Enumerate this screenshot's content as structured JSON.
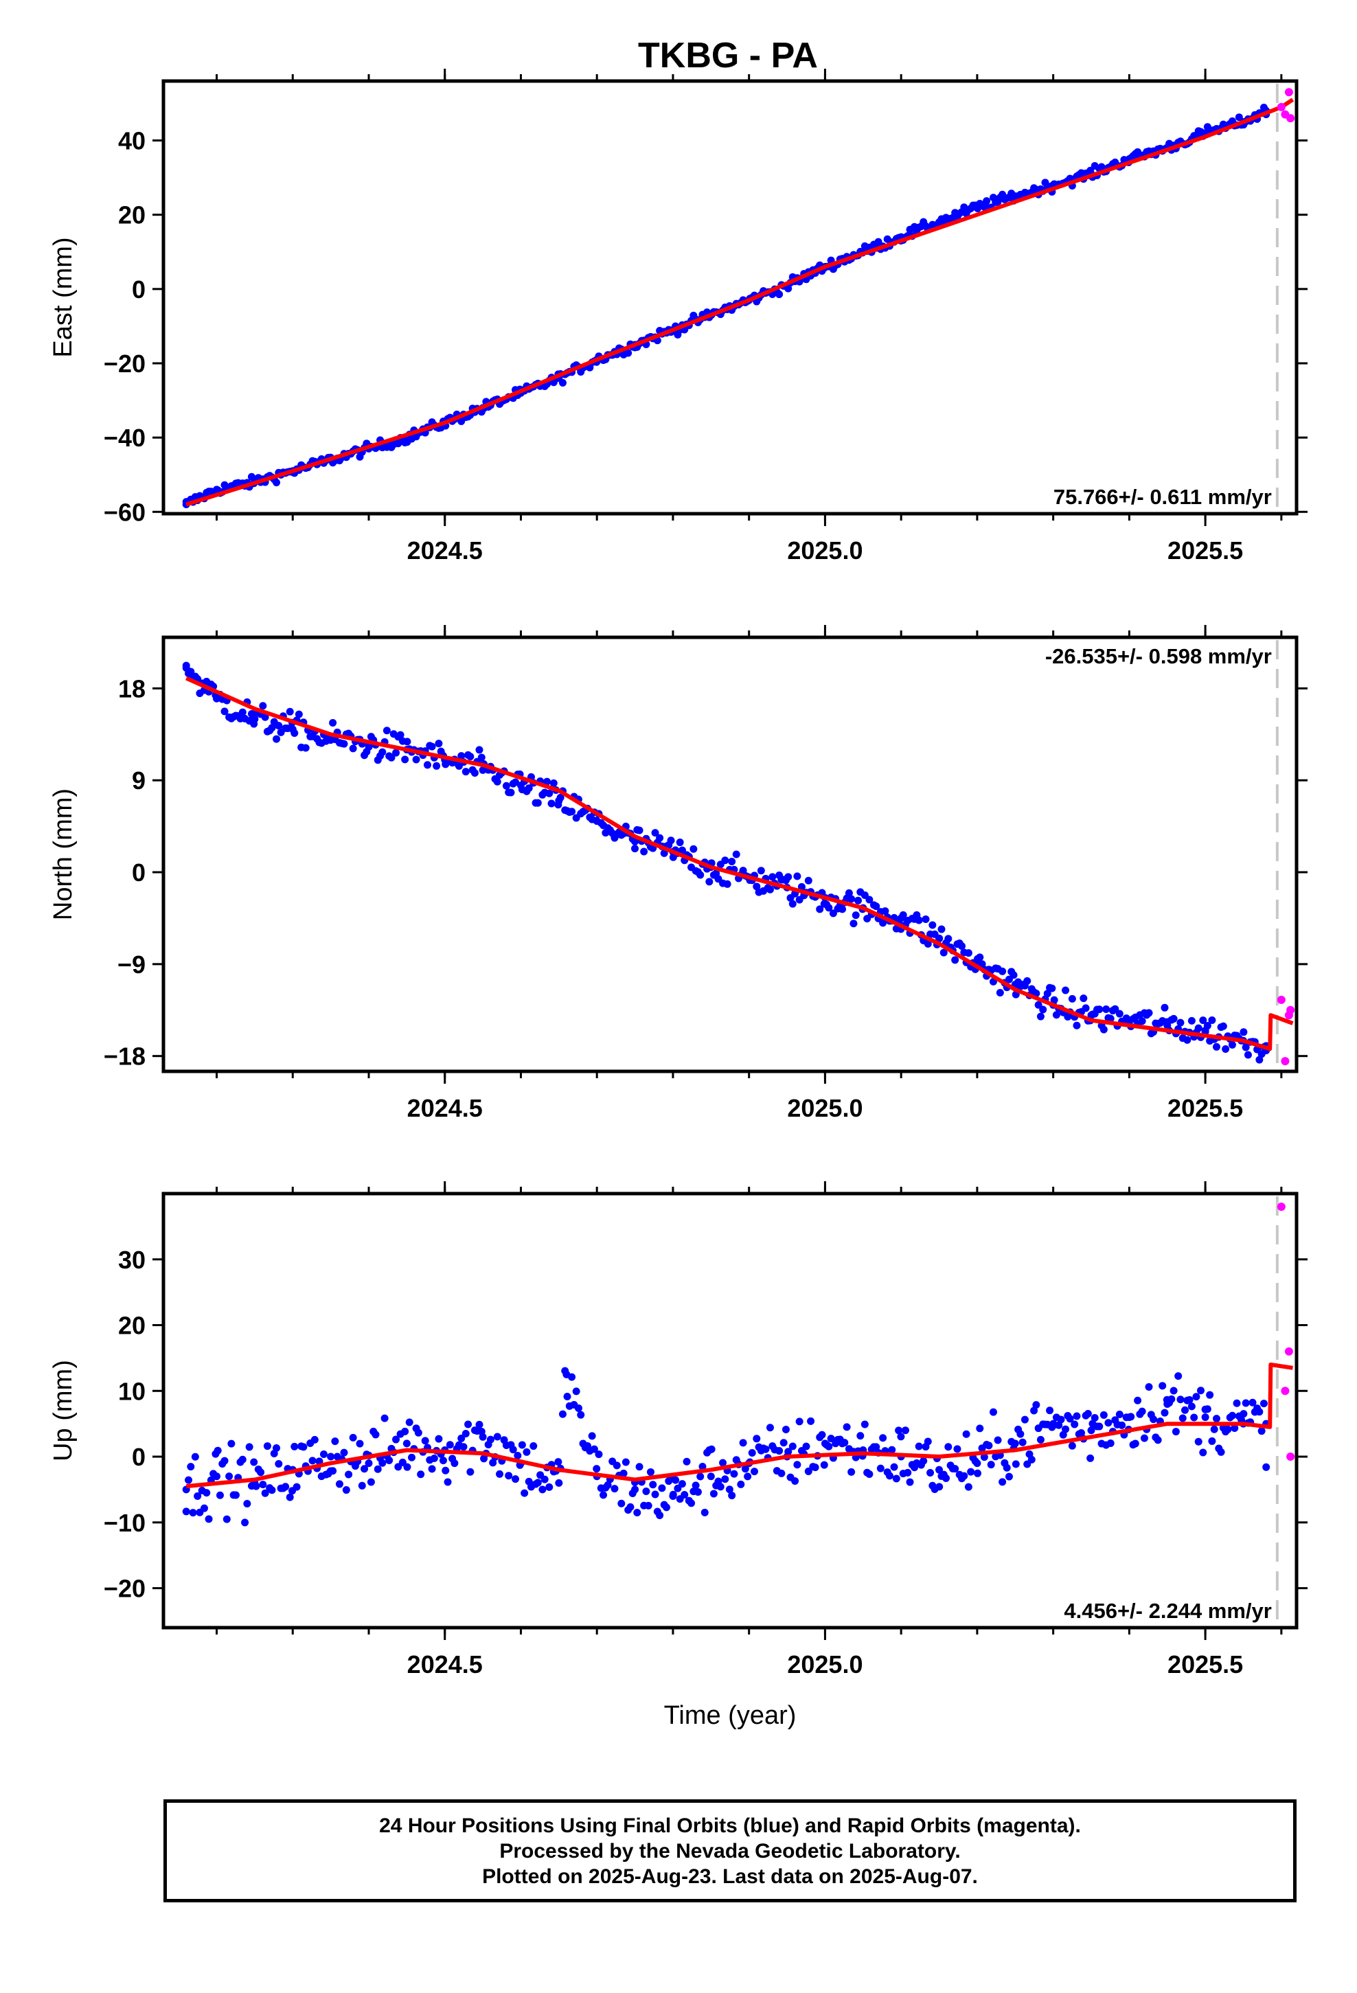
{
  "chart_data": {
    "title": "TKBG - PA",
    "xlabel": "Time (year)",
    "xlim": [
      2024.13,
      2025.62
    ],
    "x_ticks": [
      "2024.5",
      "2025.0",
      "2025.5"
    ],
    "x_tick_values": [
      2024.5,
      2025.0,
      2025.5
    ],
    "final_color": "#0000ff",
    "rapid_color": "#ff00ff",
    "model_color": "#ff0000",
    "last_data_epoch": 2025.6,
    "panels": [
      {
        "name": "east",
        "type": "scatter",
        "ylabel": "East (mm)",
        "ylim": [
          -60.5,
          56
        ],
        "y_ticks": [
          "−60",
          "−40",
          "−20",
          "0",
          "20",
          "40"
        ],
        "y_tick_values": [
          -60,
          -40,
          -20,
          0,
          20,
          40
        ],
        "rate_label": "75.766+/- 0.611 mm/yr",
        "rate_position": "bottom-right",
        "series": [
          {
            "name": "final",
            "x": [
              2024.16,
              2024.2,
              2024.25,
              2024.3,
              2024.35,
              2024.4,
              2024.45,
              2024.5,
              2024.55,
              2024.6,
              2024.65,
              2024.7,
              2024.75,
              2024.8,
              2024.85,
              2024.9,
              2024.95,
              2025.0,
              2025.05,
              2025.1,
              2025.15,
              2025.2,
              2025.25,
              2025.3,
              2025.35,
              2025.4,
              2025.45,
              2025.5,
              2025.55,
              2025.58
            ],
            "y": [
              -58,
              -54,
              -52,
              -49,
              -46,
              -43,
              -40,
              -36,
              -32,
              -28,
              -24,
              -19,
              -15,
              -11,
              -7,
              -3,
              1,
              6,
              10,
              14,
              18,
              22,
              25,
              28,
              31,
              35,
              38,
              42,
              45,
              48
            ]
          },
          {
            "name": "rapid",
            "x": [
              2025.6,
              2025.61,
              2025.605,
              2025.612
            ],
            "y": [
              49,
              53,
              47,
              46
            ]
          }
        ],
        "model": {
          "x": [
            2024.16,
            2024.3,
            2024.5,
            2024.7,
            2024.9,
            2025.0,
            2025.1,
            2025.3,
            2025.5,
            2025.6,
            2025.615
          ],
          "y": [
            -58,
            -49,
            -36,
            -19,
            -3,
            6,
            13,
            27,
            41,
            49,
            51
          ]
        }
      },
      {
        "name": "north",
        "type": "scatter",
        "ylabel": "North (mm)",
        "ylim": [
          -19.5,
          23
        ],
        "y_ticks": [
          "−18",
          "−9",
          "0",
          "9",
          "18"
        ],
        "y_tick_values": [
          -18,
          -9,
          0,
          9,
          18
        ],
        "rate_label": "-26.535+/- 0.598 mm/yr",
        "rate_position": "top-right",
        "series": [
          {
            "name": "final",
            "x": [
              2024.16,
              2024.2,
              2024.25,
              2024.3,
              2024.35,
              2024.4,
              2024.45,
              2024.5,
              2024.55,
              2024.6,
              2024.65,
              2024.7,
              2024.75,
              2024.8,
              2024.85,
              2024.9,
              2024.95,
              2025.0,
              2025.05,
              2025.1,
              2025.15,
              2025.2,
              2025.25,
              2025.3,
              2025.35,
              2025.4,
              2025.45,
              2025.5,
              2025.55,
              2025.58
            ],
            "y": [
              20,
              17,
              15,
              14,
              13,
              12.5,
              12,
              11,
              10,
              8.5,
              7,
              5,
              3,
              2,
              0.5,
              -0.5,
              -1.5,
              -2.5,
              -3.5,
              -4.5,
              -6.5,
              -9,
              -11,
              -13,
              -14,
              -14.5,
              -15,
              -15.5,
              -16.5,
              -17
            ]
          },
          {
            "name": "rapid",
            "x": [
              2025.6,
              2025.61,
              2025.605,
              2025.612
            ],
            "y": [
              -12.5,
              -14,
              -18.5,
              -13.5
            ]
          }
        ],
        "model": {
          "x": [
            2024.16,
            2024.25,
            2024.35,
            2024.45,
            2024.55,
            2024.65,
            2024.75,
            2024.85,
            2024.95,
            2025.05,
            2025.15,
            2025.25,
            2025.35,
            2025.45,
            2025.55,
            2025.585,
            2025.586,
            2025.615
          ],
          "y": [
            19,
            16,
            13.5,
            12,
            10.5,
            8,
            3.5,
            0.5,
            -1.5,
            -3.5,
            -7,
            -11.5,
            -14.5,
            -15.5,
            -16.5,
            -17.3,
            -14,
            -14.8
          ]
        }
      },
      {
        "name": "up",
        "type": "scatter",
        "ylabel": "Up (mm)",
        "ylim": [
          -26,
          40
        ],
        "y_ticks": [
          "−20",
          "−10",
          "0",
          "10",
          "20",
          "30"
        ],
        "y_tick_values": [
          -20,
          -10,
          0,
          10,
          20,
          30
        ],
        "rate_label": "4.456+/- 2.244 mm/yr",
        "rate_position": "bottom-right",
        "series": [
          {
            "name": "final",
            "x": [
              2024.16,
              2024.2,
              2024.25,
              2024.3,
              2024.35,
              2024.4,
              2024.45,
              2024.5,
              2024.55,
              2024.6,
              2024.65,
              2024.66,
              2024.7,
              2024.75,
              2024.8,
              2024.85,
              2024.9,
              2024.95,
              2025.0,
              2025.05,
              2025.1,
              2025.15,
              2025.2,
              2025.25,
              2025.3,
              2025.35,
              2025.4,
              2025.45,
              2025.5,
              2025.55,
              2025.58
            ],
            "y": [
              -5,
              -3,
              -4,
              -2,
              0,
              -1,
              2,
              1,
              3,
              -1,
              -4,
              12.5,
              -3,
              -5,
              -6,
              -3,
              -1,
              0,
              2,
              1,
              0,
              -2,
              -1,
              2,
              5,
              4,
              6,
              8,
              6,
              5,
              5
            ]
          },
          {
            "name": "rapid",
            "x": [
              2025.6,
              2025.61,
              2025.605,
              2025.612
            ],
            "y": [
              38,
              16,
              10,
              0
            ]
          }
        ],
        "model": {
          "x": [
            2024.16,
            2024.25,
            2024.35,
            2024.45,
            2024.55,
            2024.65,
            2024.75,
            2024.85,
            2024.95,
            2025.05,
            2025.15,
            2025.25,
            2025.35,
            2025.45,
            2025.55,
            2025.585,
            2025.586,
            2025.615
          ],
          "y": [
            -4.5,
            -3.5,
            -1,
            1,
            0.5,
            -2,
            -3.5,
            -2,
            0,
            0.5,
            0,
            1,
            3,
            5,
            5,
            4.5,
            14,
            13.5
          ]
        }
      }
    ]
  },
  "footer": {
    "line1": "24 Hour Positions Using Final Orbits (blue) and Rapid Orbits (magenta).",
    "line2": "Processed by the Nevada Geodetic Laboratory.",
    "line3": "Plotted on 2025-Aug-23. Last data on 2025-Aug-07."
  }
}
